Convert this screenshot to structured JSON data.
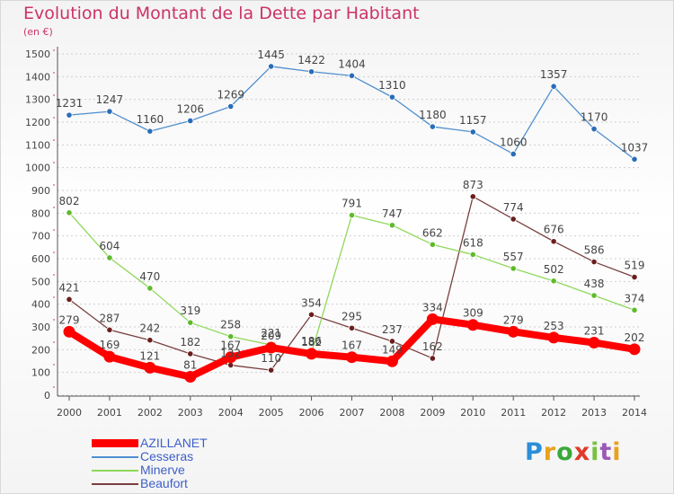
{
  "header": {
    "title": "Evolution du Montant de la Dette par Habitant",
    "unit": "(en €)"
  },
  "brand": {
    "text": "Proxiti",
    "letter_colors": [
      "#2a8fd8",
      "#e8a21c",
      "#3aa83a",
      "#e03a2a",
      "#7ac143",
      "#9b59b6",
      "#e8a21c"
    ]
  },
  "chart_data": {
    "type": "line",
    "title": "Evolution du Montant de la Dette par Habitant",
    "ylabel": "(en €)",
    "xlabel": "",
    "x": [
      2000,
      2001,
      2002,
      2003,
      2004,
      2005,
      2006,
      2007,
      2008,
      2009,
      2010,
      2011,
      2012,
      2013,
      2014
    ],
    "ylim": [
      0,
      1500
    ],
    "yticks": [
      0,
      100,
      200,
      300,
      400,
      500,
      600,
      700,
      800,
      900,
      1000,
      1100,
      1200,
      1300,
      1400,
      1500
    ],
    "grid": true,
    "legend_position": "bottom-left",
    "series": [
      {
        "name": "AZILLANET",
        "color": "#ff0000",
        "emphasis": true,
        "values": [
          279,
          169,
          121,
          81,
          167,
          209,
          182,
          167,
          149,
          334,
          309,
          279,
          253,
          231,
          202
        ]
      },
      {
        "name": "Cesseras",
        "color": "#4f8fcf",
        "marker": "#2a6db8",
        "values": [
          1231,
          1247,
          1160,
          1206,
          1269,
          1445,
          1422,
          1404,
          1310,
          1180,
          1157,
          1060,
          1357,
          1170,
          1037
        ]
      },
      {
        "name": "Minerve",
        "color": "#8fd85a",
        "marker": "#5fba2a",
        "values": [
          802,
          604,
          470,
          319,
          258,
          221,
          186,
          791,
          747,
          662,
          618,
          557,
          502,
          438,
          374
        ]
      },
      {
        "name": "Beaufort",
        "color": "#7a3f3f",
        "marker": "#6b1e1e",
        "values": [
          421,
          287,
          242,
          182,
          132,
          110,
          354,
          295,
          237,
          162,
          873,
          774,
          676,
          586,
          519
        ]
      }
    ]
  }
}
